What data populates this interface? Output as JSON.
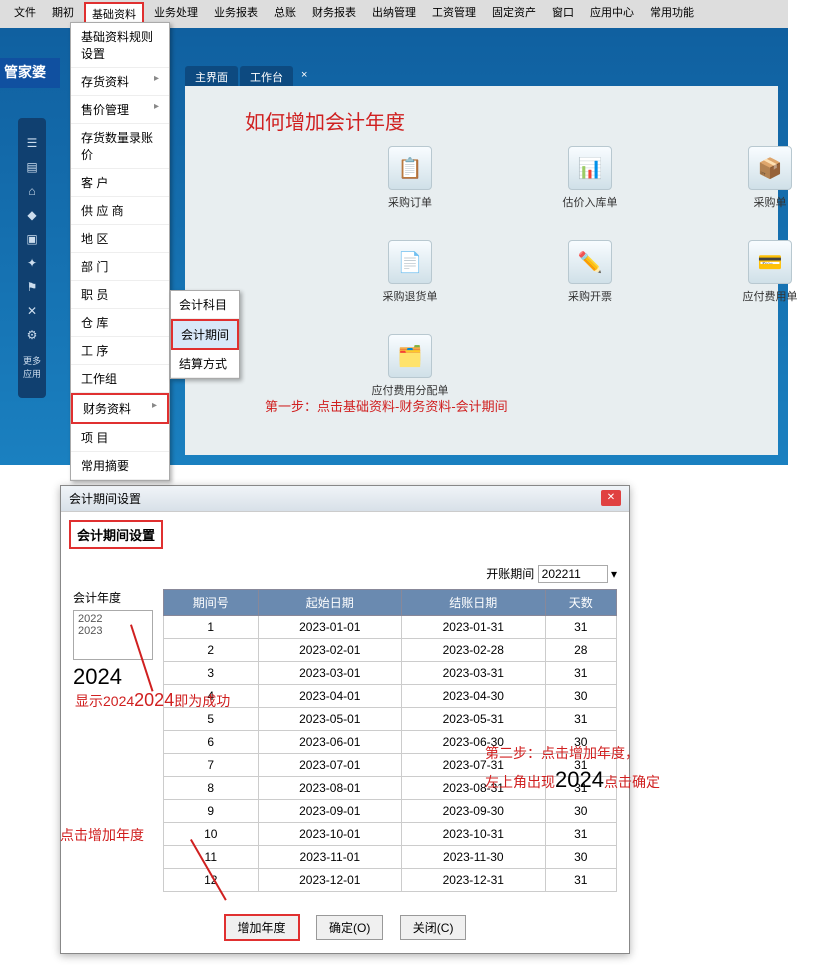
{
  "menubar": [
    "文件",
    "期初",
    "基础资料",
    "业务处理",
    "业务报表",
    "总账",
    "财务报表",
    "出纳管理",
    "工资管理",
    "固定资产",
    "窗口",
    "应用中心",
    "常用功能"
  ],
  "menubar_highlight_index": 2,
  "dropdown": {
    "items": [
      "基础资料规则设置",
      "存货资料",
      "售价管理",
      "存货数量录账价",
      "客  户",
      "供 应 商",
      "地  区",
      "部  门",
      "职  员",
      "仓  库",
      "工  序",
      "工作组",
      "财务资料",
      "项  目",
      "常用摘要"
    ],
    "arrow_indices": [
      1,
      2,
      12
    ],
    "highlight_index": 12
  },
  "submenu": {
    "items": [
      "会计科目",
      "会计期间",
      "结算方式"
    ],
    "highlight_index": 1
  },
  "logo_text": "管家婆",
  "tabs": {
    "t1": "主界面",
    "t2": "工作台"
  },
  "red_title": "如何增加会计年度",
  "icons": [
    {
      "glyph": "📋",
      "label": "采购订单"
    },
    {
      "glyph": "📊",
      "label": "估价入库单"
    },
    {
      "glyph": "📦",
      "label": "采购单"
    },
    {
      "glyph": "📄",
      "label": "采购退货单"
    },
    {
      "glyph": "✏️",
      "label": "采购开票"
    },
    {
      "glyph": "💳",
      "label": "应付费用单"
    },
    {
      "glyph": "🗂️",
      "label": "应付费用分配单"
    }
  ],
  "step1_text": "第一步：点击基础资料-财务资料-会计期间",
  "sidebar_bottom": "更多应用",
  "dialog": {
    "title": "会计期间设置",
    "subtitle": "会计期间设置",
    "open_period_label": "开账期间",
    "open_period_value": "202211",
    "year_label": "会计年度",
    "year_list": [
      "2022",
      "2023"
    ],
    "year_new": "2024",
    "table": {
      "headers": [
        "期间号",
        "起始日期",
        "结账日期",
        "天数"
      ],
      "rows": [
        [
          "1",
          "2023-01-01",
          "2023-01-31",
          "31"
        ],
        [
          "2",
          "2023-02-01",
          "2023-02-28",
          "28"
        ],
        [
          "3",
          "2023-03-01",
          "2023-03-31",
          "31"
        ],
        [
          "4",
          "2023-04-01",
          "2023-04-30",
          "30"
        ],
        [
          "5",
          "2023-05-01",
          "2023-05-31",
          "31"
        ],
        [
          "6",
          "2023-06-01",
          "2023-06-30",
          "30"
        ],
        [
          "7",
          "2023-07-01",
          "2023-07-31",
          "31"
        ],
        [
          "8",
          "2023-08-01",
          "2023-08-31",
          "31"
        ],
        [
          "9",
          "2023-09-01",
          "2023-09-30",
          "30"
        ],
        [
          "10",
          "2023-10-01",
          "2023-10-31",
          "31"
        ],
        [
          "11",
          "2023-11-01",
          "2023-11-30",
          "30"
        ],
        [
          "12",
          "2023-12-01",
          "2023-12-31",
          "31"
        ]
      ]
    },
    "buttons": {
      "add": "增加年度",
      "ok": "确定(O)",
      "close": "关闭(C)"
    }
  },
  "annotations": {
    "show_2024": "显示2024",
    "success": "即为成功",
    "click_add": "点击增加年度",
    "step2a": "第二步：点击增加年度，",
    "step2b": "左上角出现",
    "step2c": "点击确定",
    "big2024": "2024"
  }
}
